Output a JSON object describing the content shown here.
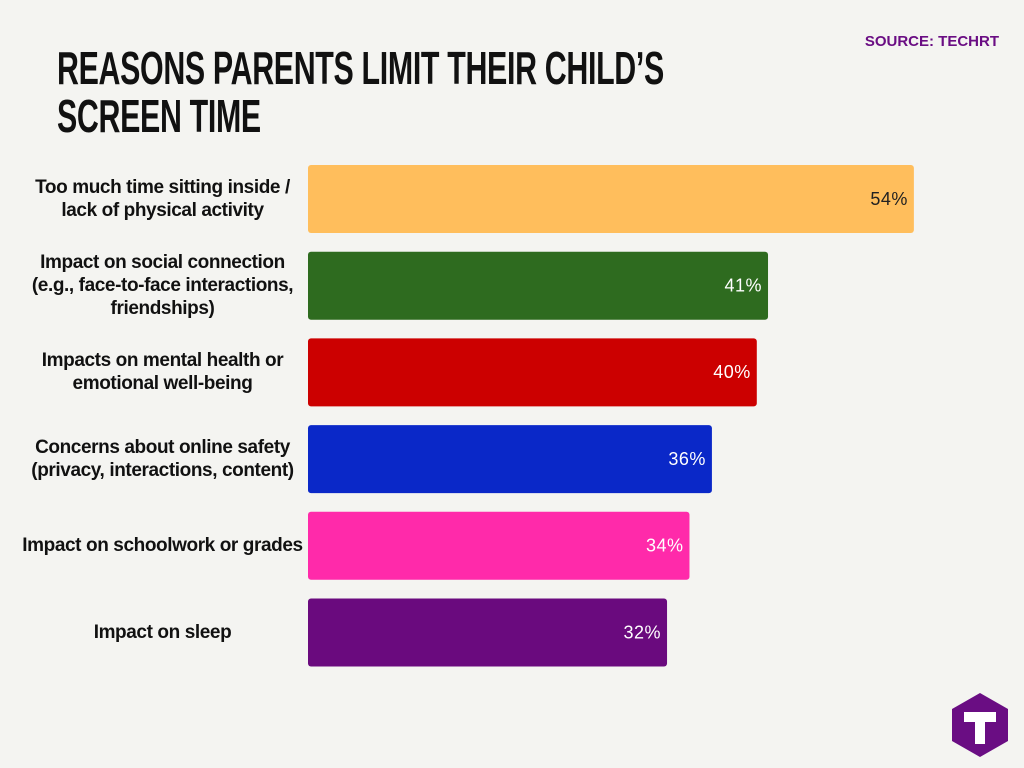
{
  "chart_data": {
    "type": "bar",
    "orientation": "horizontal",
    "title": "REASONS PARENTS LIMIT THEIR CHILD’S SCREEN TIME",
    "source": "SOURCE: TECHRT",
    "categories": [
      "Too much time sitting inside / lack of physical activity",
      "Impact on social connection (e.g., face-to-face interactions, friendships)",
      "Impacts on mental health or emotional well-being",
      "Concerns about online safety (privacy, interactions, content)",
      "Impact on schoolwork or grades",
      "Impact on sleep"
    ],
    "values": [
      54,
      41,
      40,
      36,
      34,
      32
    ],
    "value_labels": [
      "54%",
      "41%",
      "40%",
      "36%",
      "34%",
      "32%"
    ],
    "colors": [
      "#ffbe5c",
      "#2e6b1f",
      "#cc0000",
      "#0a28c8",
      "#ff2aaa",
      "#6a0a7e"
    ],
    "value_label_colors": [
      "#222222",
      "#ffffff",
      "#ffffff",
      "#ffffff",
      "#ffffff",
      "#ffffff"
    ]
  }
}
